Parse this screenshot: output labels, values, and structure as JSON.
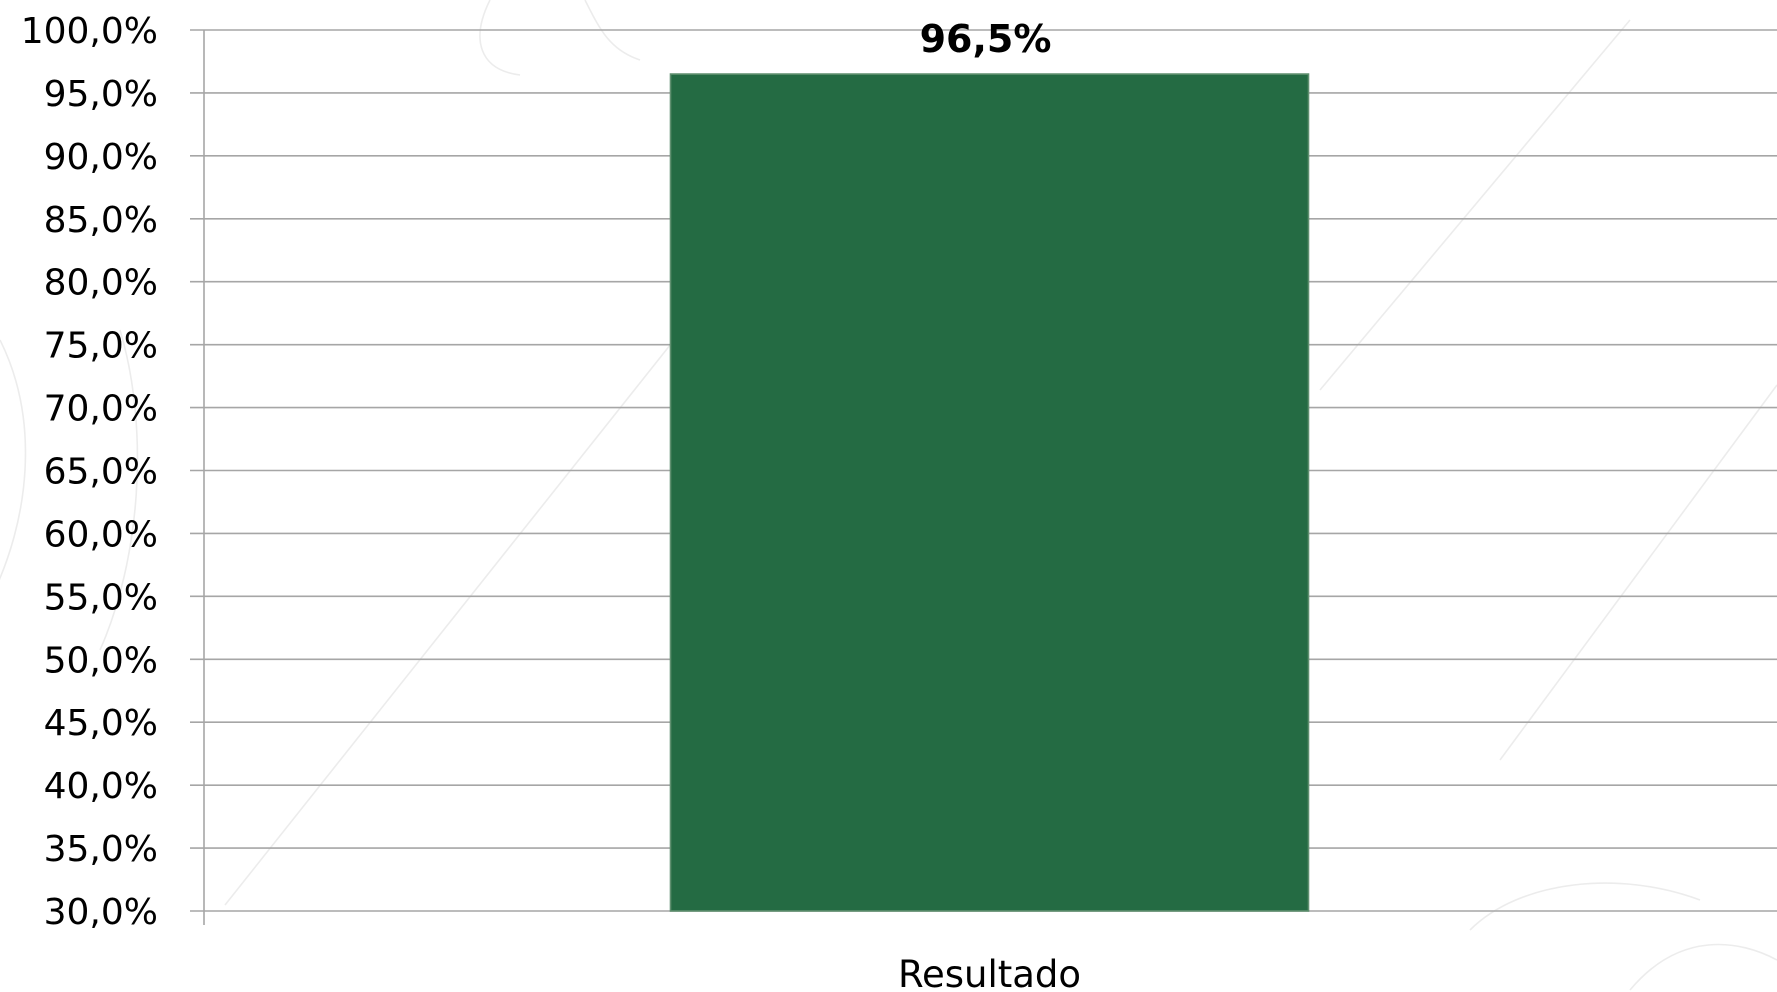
{
  "chart_data": {
    "type": "bar",
    "categories": [
      "Resultado"
    ],
    "values": [
      96.5
    ],
    "value_labels": [
      "96,5%"
    ],
    "title": "",
    "xlabel": "",
    "ylabel": "",
    "ylim": [
      30,
      100
    ],
    "ytick_step": 5,
    "ytick_labels": [
      "100,0%",
      "95,0%",
      "90,0%",
      "85,0%",
      "80,0%",
      "75,0%",
      "70,0%",
      "65,0%",
      "60,0%",
      "55,0%",
      "50,0%",
      "45,0%",
      "40,0%",
      "35,0%",
      "30,0%"
    ],
    "grid": true,
    "legend": "none",
    "bar_color": "#246b43",
    "bar_edge_color": "#5f8f6f",
    "gridline_color": "#a6a6a6"
  }
}
